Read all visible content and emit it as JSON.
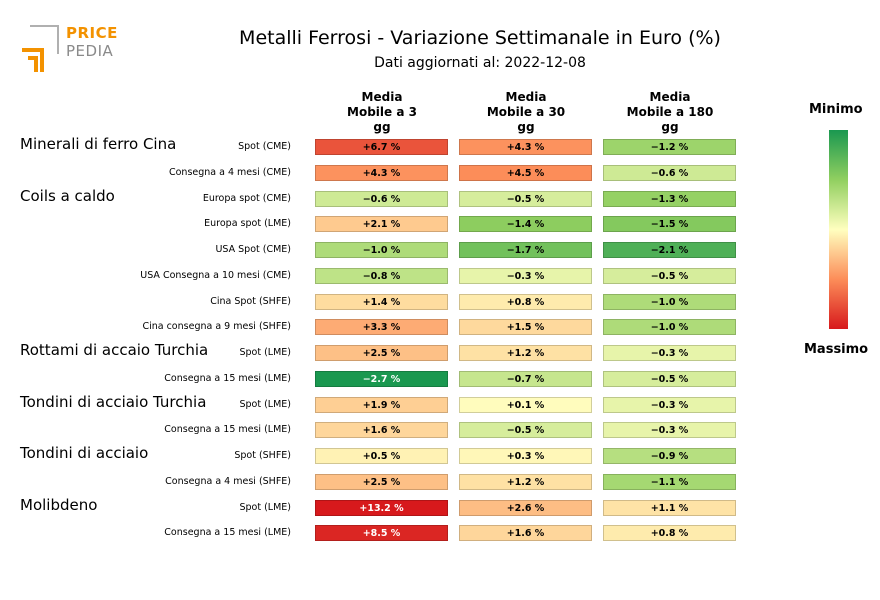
{
  "brand": {
    "price": "PRICE",
    "pedia": "PEDIA"
  },
  "title": "Metalli Ferrosi - Variazione Settimanale in Euro (%)",
  "subtitle": "Dati aggiornati al: 2022-12-08",
  "legend": {
    "min_label": "Minimo",
    "max_label": "Massimo"
  },
  "colors": {
    "min": "#1a9850",
    "mid": "#ffffbf",
    "max": "#d7191c"
  },
  "chart_data": {
    "type": "heatmap",
    "columns": [
      "Media Mobile a 3 gg",
      "Media Mobile a 30 gg",
      "Media Mobile a 180 gg"
    ],
    "column_lines": [
      [
        "Media",
        "Mobile a 3",
        "gg"
      ],
      [
        "Media",
        "Mobile a 30",
        "gg"
      ],
      [
        "Media",
        "Mobile a 180",
        "gg"
      ]
    ],
    "groups": [
      {
        "name": "Minerali di ferro Cina",
        "rows": [
          {
            "label": "Spot (CME)",
            "values": [
              6.7,
              4.3,
              -1.2
            ]
          },
          {
            "label": "Consegna a 4 mesi (CME)",
            "values": [
              4.3,
              4.5,
              -0.6
            ]
          }
        ]
      },
      {
        "name": "Coils a caldo",
        "rows": [
          {
            "label": "Europa spot (CME)",
            "values": [
              -0.6,
              -0.5,
              -1.3
            ]
          },
          {
            "label": "Europa spot (LME)",
            "values": [
              2.1,
              -1.4,
              -1.5
            ]
          },
          {
            "label": "USA Spot (CME)",
            "values": [
              -1.0,
              -1.7,
              -2.1
            ]
          },
          {
            "label": "USA Consegna a 10 mesi (CME)",
            "values": [
              -0.8,
              -0.3,
              -0.5
            ]
          },
          {
            "label": "Cina Spot (SHFE)",
            "values": [
              1.4,
              0.8,
              -1.0
            ]
          },
          {
            "label": "Cina consegna a 9 mesi (SHFE)",
            "values": [
              3.3,
              1.5,
              -1.0
            ]
          }
        ]
      },
      {
        "name": "Rottami di accaio Turchia",
        "rows": [
          {
            "label": "Spot (LME)",
            "values": [
              2.5,
              1.2,
              -0.3
            ]
          },
          {
            "label": "Consegna a 15 mesi (LME)",
            "values": [
              -2.7,
              -0.7,
              -0.5
            ]
          }
        ]
      },
      {
        "name": "Tondini di acciaio Turchia",
        "rows": [
          {
            "label": "Spot (LME)",
            "values": [
              1.9,
              0.1,
              -0.3
            ]
          },
          {
            "label": "Consegna a 15 mesi (LME)",
            "values": [
              1.6,
              -0.5,
              -0.3
            ]
          }
        ]
      },
      {
        "name": "Tondini di acciaio",
        "rows": [
          {
            "label": "Spot (SHFE)",
            "values": [
              0.5,
              0.3,
              -0.9
            ]
          },
          {
            "label": "Consegna a 4 mesi (SHFE)",
            "values": [
              2.5,
              1.2,
              -1.1
            ]
          }
        ]
      },
      {
        "name": "Molibdeno",
        "rows": [
          {
            "label": "Spot (LME)",
            "values": [
              13.2,
              2.6,
              1.1
            ]
          },
          {
            "label": "Consegna a 15 mesi (LME)",
            "values": [
              8.5,
              1.6,
              0.8
            ]
          }
        ]
      }
    ],
    "value_suffix": " %"
  }
}
